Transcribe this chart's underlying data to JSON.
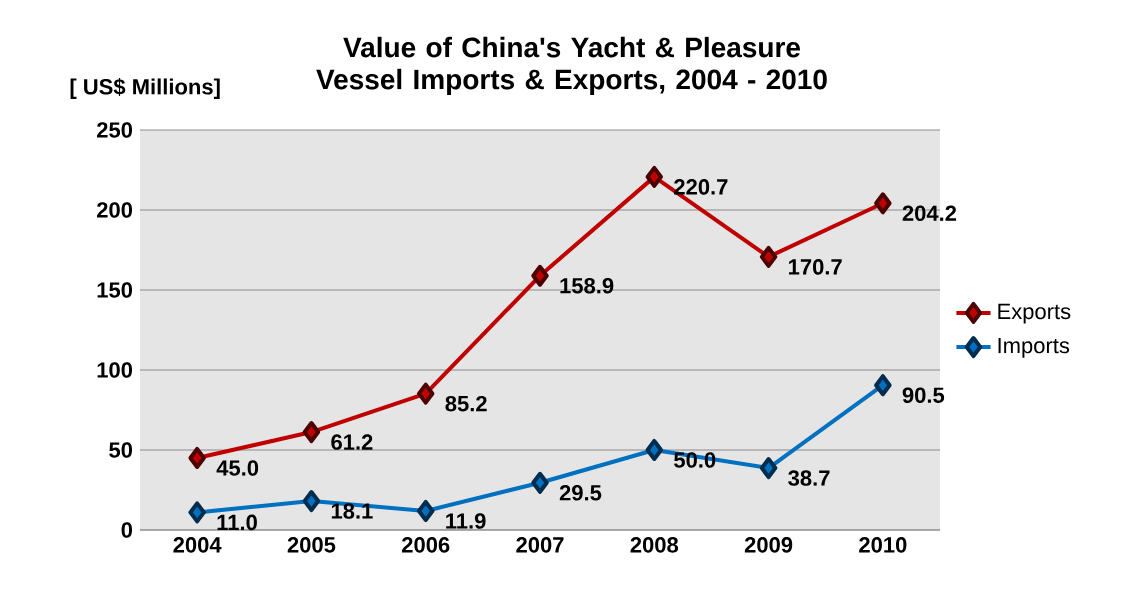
{
  "chart_data": {
    "type": "line",
    "title": "Value of China's Yacht & Pleasure Vessel Imports & Exports, 2004 - 2010",
    "ylabel": "[ US$ Millions]",
    "categories": [
      "2004",
      "2005",
      "2006",
      "2007",
      "2008",
      "2009",
      "2010"
    ],
    "series": [
      {
        "name": "Exports",
        "color": "#c00000",
        "values": [
          45.0,
          61.2,
          85.2,
          158.9,
          220.7,
          170.7,
          204.2
        ],
        "value_labels": [
          "45.0",
          "61.2",
          "85.2",
          "158.9",
          "220.7",
          "170.7",
          "204.2"
        ]
      },
      {
        "name": "Imports",
        "color": "#0070c0",
        "values": [
          11.0,
          18.1,
          11.9,
          29.5,
          50.0,
          38.7,
          90.5
        ],
        "value_labels": [
          "11.0",
          "18.1",
          "11.9",
          "29.5",
          "50.0",
          "38.7",
          "90.5"
        ]
      }
    ],
    "ylim": [
      0,
      250
    ],
    "yticks": [
      0,
      50,
      100,
      150,
      200,
      250
    ],
    "grid": "y",
    "legend": "right",
    "marker": "diamond",
    "line_style": "solid"
  }
}
